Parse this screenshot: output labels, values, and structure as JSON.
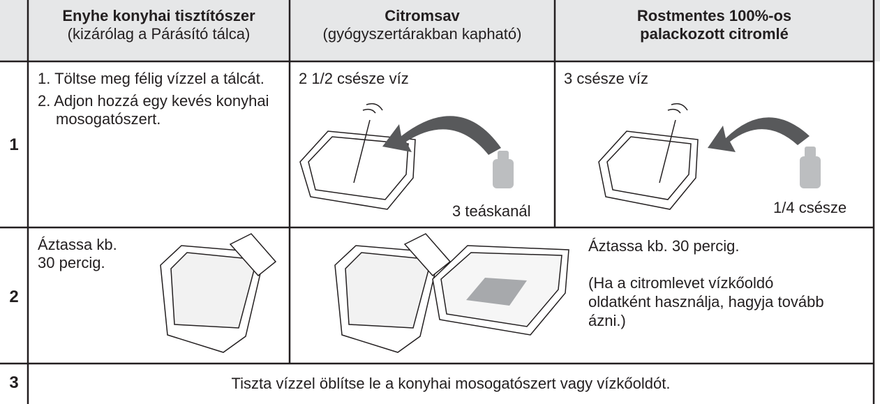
{
  "table": {
    "header": [
      {
        "title": "Enyhe konyhai tisztítószer",
        "subtitle": "(kizárólag a Párásító tálca)"
      },
      {
        "title": "Citromsav",
        "subtitle": "(gyógyszertárakban kapható)"
      },
      {
        "title_lines": [
          "Rostmentes 100%-os",
          "palackozott citromlé"
        ]
      }
    ],
    "rows": [
      {
        "number": "1",
        "cells": [
          {
            "steps": [
              "1. Töltse meg félig vízzel a tálcát.",
              "2. Adjon hozzá egy kevés konyhai mosogatószert."
            ]
          },
          {
            "text": "2 1/2 csésze víz",
            "amount": "3 teáskanál"
          },
          {
            "text": "3 csésze víz",
            "amount": "1/4 csésze"
          }
        ]
      },
      {
        "number": "2",
        "cells": [
          {
            "lines": [
              "Áztassa kb.",
              "30 percig."
            ]
          },
          {
            "text": "Áztassa kb. 30 percig.",
            "note": "(Ha a citromlevet vízkőoldó oldatként használja, hagyja tovább ázni.)"
          }
        ]
      },
      {
        "number": "3",
        "cells": [
          {
            "text": "Tiszta vízzel öblítse le a konyhai mosogatószert vagy vízkőoldót."
          }
        ]
      }
    ]
  }
}
